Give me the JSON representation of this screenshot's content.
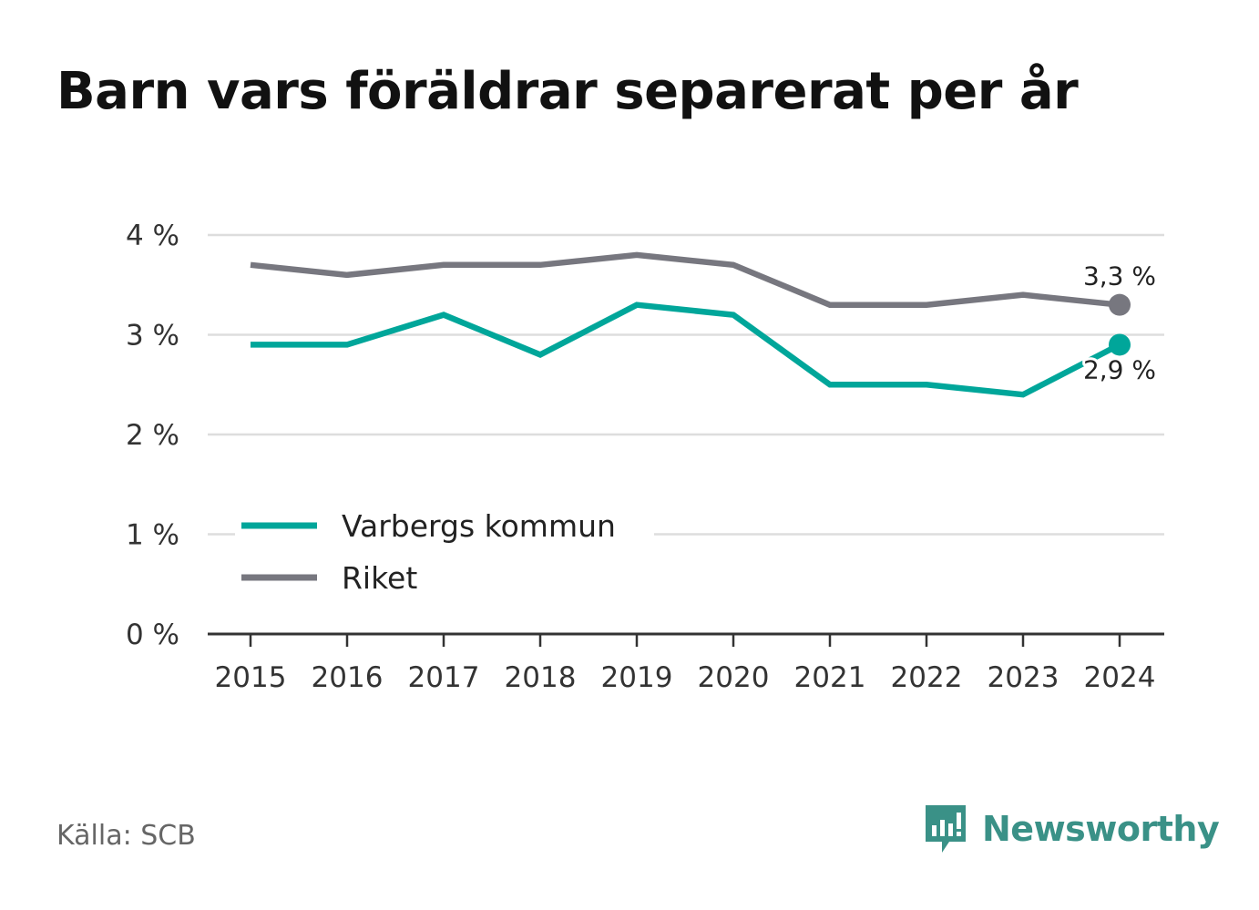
{
  "chart_data": {
    "type": "line",
    "title": "Barn vars föräldrar separerat per år",
    "xlabel": "",
    "ylabel": "",
    "categories": [
      "2015",
      "2016",
      "2017",
      "2018",
      "2019",
      "2020",
      "2021",
      "2022",
      "2023",
      "2024"
    ],
    "series": [
      {
        "name": "Varbergs kommun",
        "color": "#00a69a",
        "values": [
          2.9,
          2.9,
          3.2,
          2.8,
          3.3,
          3.2,
          2.5,
          2.5,
          2.4,
          2.9
        ],
        "end_label": "2,9 %"
      },
      {
        "name": "Riket",
        "color": "#77777f",
        "values": [
          3.7,
          3.6,
          3.7,
          3.7,
          3.8,
          3.7,
          3.3,
          3.3,
          3.4,
          3.3
        ],
        "end_label": "3,3 %"
      }
    ],
    "ylim": [
      0,
      4
    ],
    "yticks": [
      {
        "value": 0,
        "label": "0 %"
      },
      {
        "value": 1,
        "label": "1 %"
      },
      {
        "value": 2,
        "label": "2 %"
      },
      {
        "value": 3,
        "label": "3 %"
      },
      {
        "value": 4,
        "label": "4 %"
      }
    ],
    "grid": true,
    "legend_position": "bottom-left"
  },
  "footer": {
    "source": "Källa: SCB",
    "brand": "Newsworthy",
    "brand_color": "#3a9187",
    "brand_icon": "newsworthy-logo-icon"
  }
}
